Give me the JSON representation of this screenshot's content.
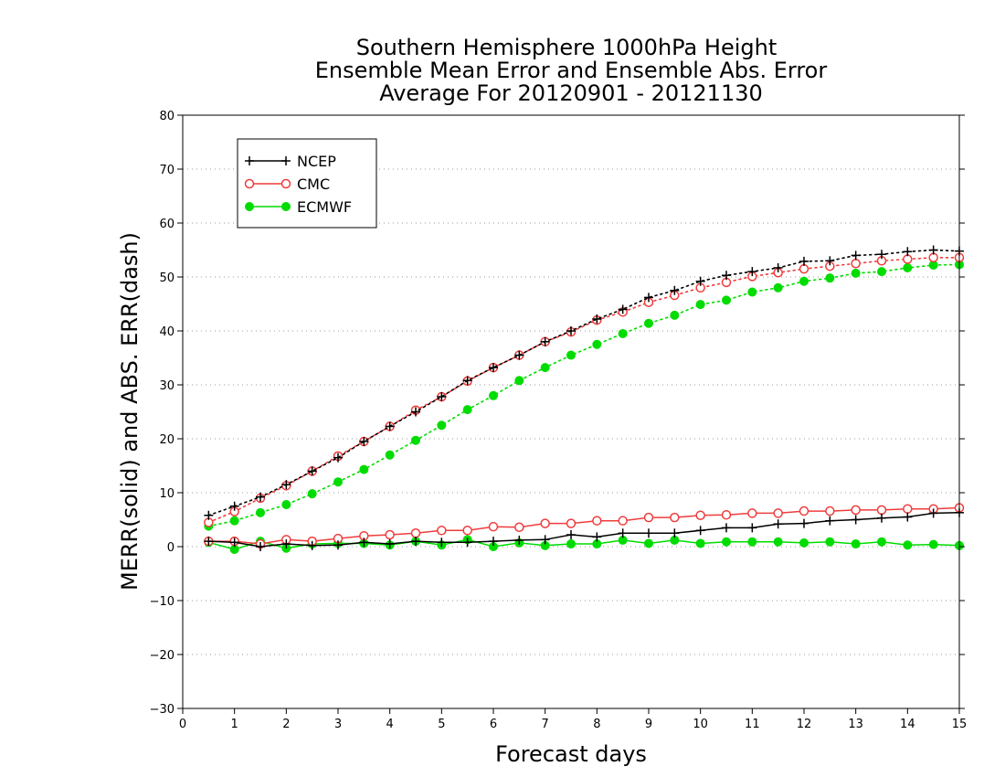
{
  "chart_data": {
    "type": "line",
    "title": [
      "Southern Hemisphere 1000hPa Height",
      "Ensemble Mean Error and Ensemble Abs. Error",
      "Average For 20120901 - 20121130"
    ],
    "xlabel": "Forecast days",
    "ylabel": "MERR(solid) and ABS. ERR(dash)",
    "xlim": [
      0,
      15
    ],
    "ylim": [
      -30,
      80
    ],
    "x_ticks": [
      0,
      1,
      2,
      3,
      4,
      5,
      6,
      7,
      8,
      9,
      10,
      11,
      12,
      13,
      14,
      15
    ],
    "y_ticks": [
      -30,
      -20,
      -10,
      0,
      10,
      20,
      30,
      40,
      50,
      60,
      70,
      80
    ],
    "grid": "horizontal dotted",
    "legend_position": "top-left",
    "x": [
      0.5,
      1,
      1.5,
      2,
      2.5,
      3,
      3.5,
      4,
      4.5,
      5,
      5.5,
      6,
      6.5,
      7,
      7.5,
      8,
      8.5,
      9,
      9.5,
      10,
      10.5,
      11,
      11.5,
      12,
      12.5,
      13,
      13.5,
      14,
      14.5,
      15
    ],
    "series": [
      {
        "name": "NCEP",
        "color": "#000000",
        "marker": "plus",
        "merr": [
          1.0,
          0.8,
          0.0,
          0.5,
          0.2,
          0.3,
          0.8,
          0.5,
          1.0,
          0.8,
          0.8,
          1.0,
          1.2,
          1.3,
          2.2,
          1.8,
          2.5,
          2.5,
          2.5,
          3.0,
          3.5,
          3.5,
          4.2,
          4.3,
          4.8,
          5.0,
          5.3,
          5.5,
          6.2,
          6.3
        ],
        "abs_err": [
          5.8,
          7.5,
          9.2,
          11.5,
          14.0,
          16.5,
          19.5,
          22.3,
          25.0,
          27.8,
          30.8,
          33.2,
          35.5,
          38.0,
          40.0,
          42.2,
          44.0,
          46.2,
          47.5,
          49.2,
          50.3,
          51.0,
          51.7,
          52.9,
          53.0,
          54.0,
          54.2,
          54.7,
          55.0,
          54.8
        ]
      },
      {
        "name": "CMC",
        "color": "#f03c3c",
        "marker": "open-circle",
        "merr": [
          1.0,
          1.0,
          0.5,
          1.3,
          1.0,
          1.5,
          2.0,
          2.2,
          2.5,
          3.0,
          3.0,
          3.7,
          3.6,
          4.3,
          4.3,
          4.8,
          4.8,
          5.4,
          5.4,
          5.8,
          5.9,
          6.2,
          6.2,
          6.6,
          6.6,
          6.8,
          6.8,
          7.0,
          7.0,
          7.2
        ],
        "abs_err": [
          4.5,
          6.5,
          9.0,
          11.3,
          14.0,
          16.8,
          19.5,
          22.3,
          25.3,
          27.8,
          30.7,
          33.2,
          35.5,
          38.0,
          39.8,
          42.0,
          43.5,
          45.3,
          46.6,
          48.0,
          49.0,
          50.1,
          50.8,
          51.5,
          52.0,
          52.5,
          53.0,
          53.3,
          53.6,
          53.6
        ]
      },
      {
        "name": "ECMWF",
        "color": "#00dc00",
        "marker": "filled-circle",
        "merr": [
          0.8,
          -0.5,
          1.0,
          -0.3,
          0.5,
          0.6,
          0.6,
          0.3,
          1.0,
          0.3,
          1.3,
          0.0,
          0.7,
          0.2,
          0.5,
          0.5,
          1.2,
          0.6,
          1.2,
          0.6,
          0.9,
          0.9,
          0.9,
          0.7,
          0.9,
          0.5,
          0.9,
          0.3,
          0.4,
          0.2
        ],
        "abs_err": [
          3.8,
          4.8,
          6.3,
          7.8,
          9.8,
          12.0,
          14.3,
          17.0,
          19.7,
          22.5,
          25.4,
          28.0,
          30.8,
          33.2,
          35.5,
          37.5,
          39.5,
          41.4,
          42.9,
          44.9,
          45.7,
          47.2,
          48.0,
          49.2,
          49.8,
          50.7,
          51.0,
          51.7,
          52.2,
          52.3
        ]
      }
    ]
  }
}
